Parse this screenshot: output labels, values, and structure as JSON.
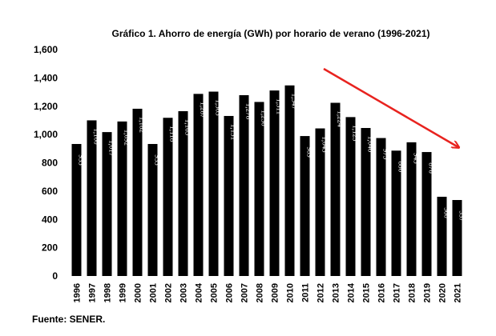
{
  "chart_data": {
    "type": "bar",
    "title": "Gráfico 1. Ahorro de energía (GWh) por horario de verano (1996-2021)",
    "categories": [
      "1996",
      "1997",
      "1998",
      "1999",
      "2000",
      "2001",
      "2002",
      "2003",
      "2004",
      "2005",
      "2006",
      "2007",
      "2008",
      "2009",
      "2010",
      "2011",
      "2012",
      "2013",
      "2014",
      "2015",
      "2016",
      "2017",
      "2018",
      "2019",
      "2020",
      "2021"
    ],
    "values": [
      933,
      1100,
      1017,
      1092,
      1182,
      933,
      1118,
      1165,
      1287,
      1303,
      1131,
      1278,
      1230,
      1311,
      1347,
      989,
      1043,
      1224,
      1123,
      1046,
      975,
      886,
      945,
      876,
      560,
      537
    ],
    "value_labels": [
      "933",
      "1,100",
      "1,017",
      "1,092",
      "1,182",
      "933",
      "1,118",
      "1,165",
      "1,287",
      "1,303",
      "1,131",
      "1,278",
      "1,230",
      "1,311",
      "1,347",
      "989",
      "1,043",
      "1,224",
      "1,123",
      "1,046",
      "975",
      "886",
      "945",
      "876",
      "560",
      "537"
    ],
    "yticks": [
      0,
      200,
      400,
      600,
      800,
      1000,
      1200,
      1400,
      1600
    ],
    "ytick_labels": [
      "0",
      "200",
      "400",
      "600",
      "800",
      "1,000",
      "1,200",
      "1,400",
      "1,600"
    ],
    "ylim": [
      0,
      1600
    ],
    "xlabel": "",
    "ylabel": "",
    "grid": false,
    "legend": "none",
    "bar_color": "#000000",
    "value_label_color": "#ffffff",
    "annotation": {
      "type": "arrow",
      "direction": "downward trend",
      "color": "#e8231f"
    }
  },
  "source": "Fuente: SENER."
}
